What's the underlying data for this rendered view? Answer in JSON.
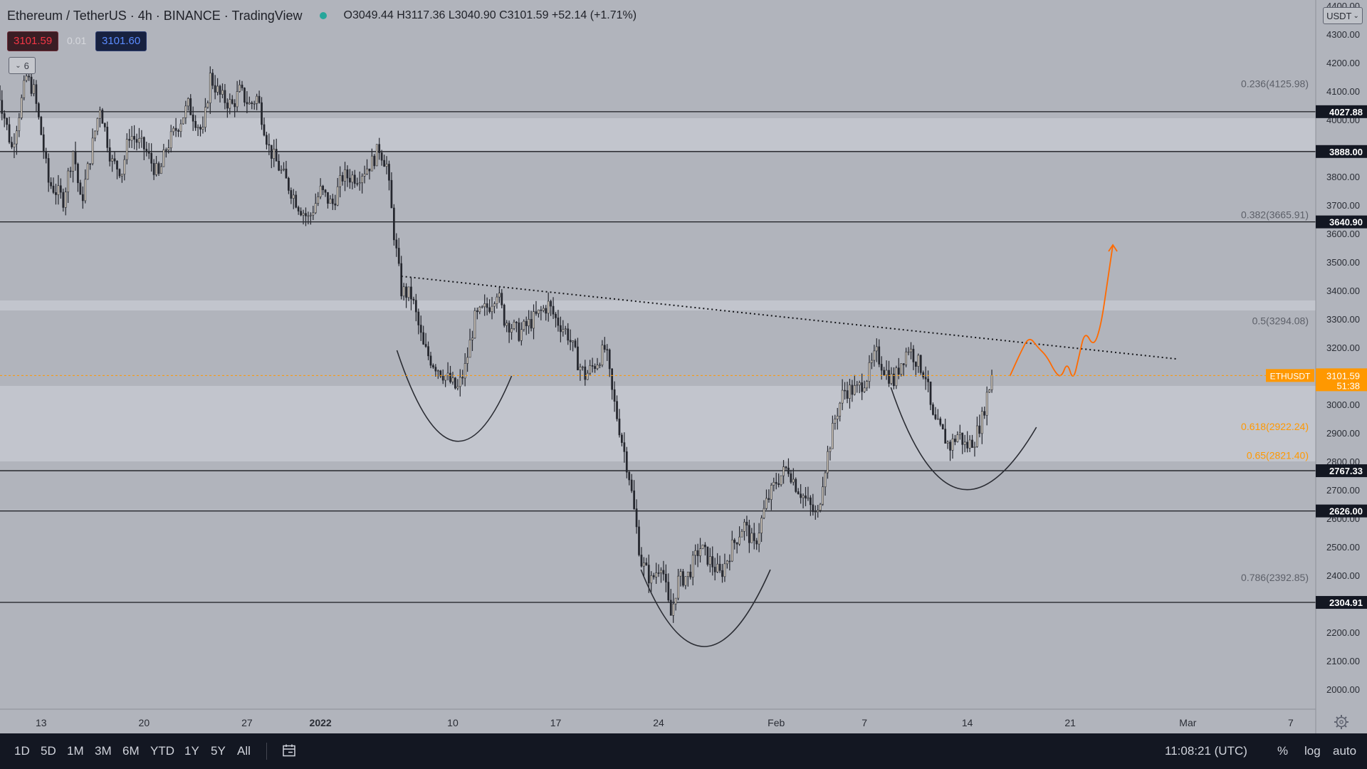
{
  "header": {
    "symbol": "Ethereum / TetherUS · 4h · BINANCE · TradingView",
    "ohlc": "O3049.44 H3117.36 L3040.90 C3101.59 +52.14 (+1.71%)",
    "sell_price": "3101.59",
    "spread": "0.01",
    "buy_price": "3101.60",
    "indicator_toggle": "6",
    "currency_selector": "USDT"
  },
  "colors": {
    "background": "#b1b4bc",
    "candle": "#25272e",
    "zone": "#c5c8d0",
    "fib_orange": "#ff9800",
    "projection": "#ff6a00",
    "hline": "#1a1b20"
  },
  "bottom_bar": {
    "timeframes": [
      "1D",
      "5D",
      "1M",
      "3M",
      "6M",
      "YTD",
      "1Y",
      "5Y",
      "All"
    ],
    "clock": "11:08:21 (UTC)",
    "percent": "%",
    "log": "log",
    "auto": "auto"
  },
  "chart_data": {
    "type": "candlestick",
    "y_axis": {
      "ylim": [
        1930,
        4420
      ],
      "ticks": [
        2000,
        2100,
        2200,
        2300,
        2400,
        2500,
        2600,
        2700,
        2800,
        2900,
        3000,
        3100,
        3200,
        3300,
        3400,
        3500,
        3600,
        3700,
        3800,
        3900,
        4000,
        4100,
        4200,
        4300,
        4400
      ],
      "tick_labels": [
        "2000.00",
        "2100.00",
        "2200.00",
        "2300.00",
        "2400.00",
        "2500.00",
        "2600.00",
        "2700.00",
        "2800.00",
        "2900.00",
        "3000.00",
        "3100.00",
        "3200.00",
        "3300.00",
        "3400.00",
        "3500.00",
        "3600.00",
        "3700.00",
        "3800.00",
        "3900.00",
        "4000.00",
        "4100.00",
        "4200.00",
        "4300.00",
        "4400.00"
      ]
    },
    "x_axis": {
      "tick_labels": [
        "13",
        "20",
        "27",
        "2022",
        "10",
        "17",
        "24",
        "Feb",
        "7",
        "14",
        "21",
        "Mar",
        "7"
      ],
      "tick_days": [
        -19,
        -12,
        -5,
        0,
        9,
        16,
        23,
        31,
        37,
        44,
        51,
        59,
        66
      ],
      "xlim_days": [
        -21.8,
        67.7
      ]
    },
    "horizontal_levels": [
      {
        "price": 4027.88,
        "label": "4027.88"
      },
      {
        "price": 3888.0,
        "label": "3888.00"
      },
      {
        "price": 3640.9,
        "label": "3640.90"
      },
      {
        "price": 2767.33,
        "label": "2767.33"
      },
      {
        "price": 2626.0,
        "label": "2626.00"
      },
      {
        "price": 2304.91,
        "label": "2304.91"
      }
    ],
    "zones": [
      {
        "from": 3888,
        "to": 4005
      },
      {
        "from": 3330,
        "to": 3365
      },
      {
        "from": 2800,
        "to": 3065
      }
    ],
    "fib_levels": [
      {
        "price": 4125.98,
        "label": "0.236(4125.98)",
        "highlight": false
      },
      {
        "price": 3665.91,
        "label": "0.382(3665.91)",
        "highlight": false
      },
      {
        "price": 3294.08,
        "label": "0.5(3294.08)",
        "highlight": false
      },
      {
        "price": 2922.24,
        "label": "0.618(2922.24)",
        "highlight": true
      },
      {
        "price": 2821.4,
        "label": "0.65(2821.40)",
        "highlight": true
      },
      {
        "price": 2392.85,
        "label": "0.786(2392.85)",
        "highlight": false
      }
    ],
    "current_price": {
      "price": 3101.59,
      "symbol": "ETHUSDT",
      "label": "3101.59",
      "countdown": "51:38"
    },
    "trendline": {
      "x1": 5.5,
      "y1": 3450,
      "x2": 58.2,
      "y2": 3160
    },
    "arcs": [
      {
        "start": [
          5.2,
          3190
        ],
        "control": [
          9.0,
          2600
        ],
        "end": [
          13.0,
          3100
        ]
      },
      {
        "start": [
          21.8,
          2420
        ],
        "control": [
          26.0,
          1880
        ],
        "end": [
          30.6,
          2420
        ]
      },
      {
        "start": [
          38.8,
          3060
        ],
        "control": [
          43.0,
          2420
        ],
        "end": [
          48.7,
          2920
        ]
      }
    ],
    "projection": [
      [
        46.9,
        3100
      ],
      [
        47.6,
        3180
      ],
      [
        48.2,
        3240
      ],
      [
        48.8,
        3200
      ],
      [
        49.4,
        3170
      ],
      [
        50.0,
        3110
      ],
      [
        50.4,
        3095
      ],
      [
        50.8,
        3150
      ],
      [
        51.2,
        3080
      ],
      [
        51.6,
        3170
      ],
      [
        52.0,
        3260
      ],
      [
        52.6,
        3200
      ],
      [
        53.1,
        3280
      ],
      [
        53.5,
        3420
      ],
      [
        53.9,
        3560
      ]
    ],
    "candle_anchors": [
      [
        -22.0,
        4120
      ],
      [
        -21.0,
        3900
      ],
      [
        -20.0,
        4150
      ],
      [
        -19.5,
        4100
      ],
      [
        -19.0,
        3950
      ],
      [
        -18.5,
        3780
      ],
      [
        -17.5,
        3720
      ],
      [
        -16.8,
        3900
      ],
      [
        -16.3,
        3700
      ],
      [
        -15.0,
        4050
      ],
      [
        -14.2,
        3850
      ],
      [
        -13.5,
        3820
      ],
      [
        -13.0,
        3950
      ],
      [
        -12.0,
        3900
      ],
      [
        -11.0,
        3800
      ],
      [
        -10.5,
        3900
      ],
      [
        -9.0,
        4050
      ],
      [
        -8.0,
        3950
      ],
      [
        -7.5,
        4150
      ],
      [
        -6.8,
        4080
      ],
      [
        -6.0,
        4050
      ],
      [
        -5.5,
        4100
      ],
      [
        -4.8,
        4050
      ],
      [
        -4.3,
        4080
      ],
      [
        -3.5,
        3900
      ],
      [
        -2.5,
        3800
      ],
      [
        -1.5,
        3700
      ],
      [
        -0.8,
        3650
      ],
      [
        0.0,
        3750
      ],
      [
        0.8,
        3700
      ],
      [
        1.5,
        3800
      ],
      [
        2.5,
        3800
      ],
      [
        3.5,
        3850
      ],
      [
        4.0,
        3900
      ],
      [
        4.5,
        3840
      ],
      [
        5.0,
        3600
      ],
      [
        5.5,
        3400
      ],
      [
        6.2,
        3380
      ],
      [
        7.0,
        3200
      ],
      [
        7.6,
        3150
      ],
      [
        8.5,
        3100
      ],
      [
        9.3,
        3050
      ],
      [
        9.8,
        3120
      ],
      [
        10.5,
        3300
      ],
      [
        11.5,
        3350
      ],
      [
        12.0,
        3400
      ],
      [
        12.5,
        3300
      ],
      [
        13.5,
        3250
      ],
      [
        14.5,
        3300
      ],
      [
        15.5,
        3350
      ],
      [
        16.0,
        3300
      ],
      [
        16.8,
        3250
      ],
      [
        17.5,
        3150
      ],
      [
        18.0,
        3100
      ],
      [
        18.8,
        3150
      ],
      [
        19.4,
        3200
      ],
      [
        19.8,
        3050
      ],
      [
        20.4,
        2900
      ],
      [
        21.0,
        2750
      ],
      [
        21.8,
        2450
      ],
      [
        22.5,
        2380
      ],
      [
        23.2,
        2450
      ],
      [
        23.8,
        2250
      ],
      [
        24.3,
        2380
      ],
      [
        25.0,
        2400
      ],
      [
        25.8,
        2500
      ],
      [
        26.5,
        2450
      ],
      [
        27.2,
        2400
      ],
      [
        28.0,
        2500
      ],
      [
        28.8,
        2580
      ],
      [
        29.5,
        2500
      ],
      [
        30.3,
        2650
      ],
      [
        31.0,
        2730
      ],
      [
        31.8,
        2780
      ],
      [
        32.3,
        2720
      ],
      [
        33.2,
        2650
      ],
      [
        33.8,
        2600
      ],
      [
        34.2,
        2750
      ],
      [
        35.0,
        2950
      ],
      [
        35.6,
        3050
      ],
      [
        36.5,
        3050
      ],
      [
        37.2,
        3100
      ],
      [
        37.8,
        3180
      ],
      [
        38.4,
        3120
      ],
      [
        39.0,
        3080
      ],
      [
        39.5,
        3150
      ],
      [
        40.0,
        3200
      ],
      [
        40.6,
        3150
      ],
      [
        41.2,
        3100
      ],
      [
        41.6,
        2950
      ],
      [
        42.3,
        2900
      ],
      [
        42.8,
        2850
      ],
      [
        43.4,
        2900
      ],
      [
        43.9,
        2850
      ],
      [
        44.5,
        2880
      ],
      [
        45.0,
        2950
      ],
      [
        45.4,
        3050
      ],
      [
        45.8,
        3101.59
      ]
    ]
  }
}
